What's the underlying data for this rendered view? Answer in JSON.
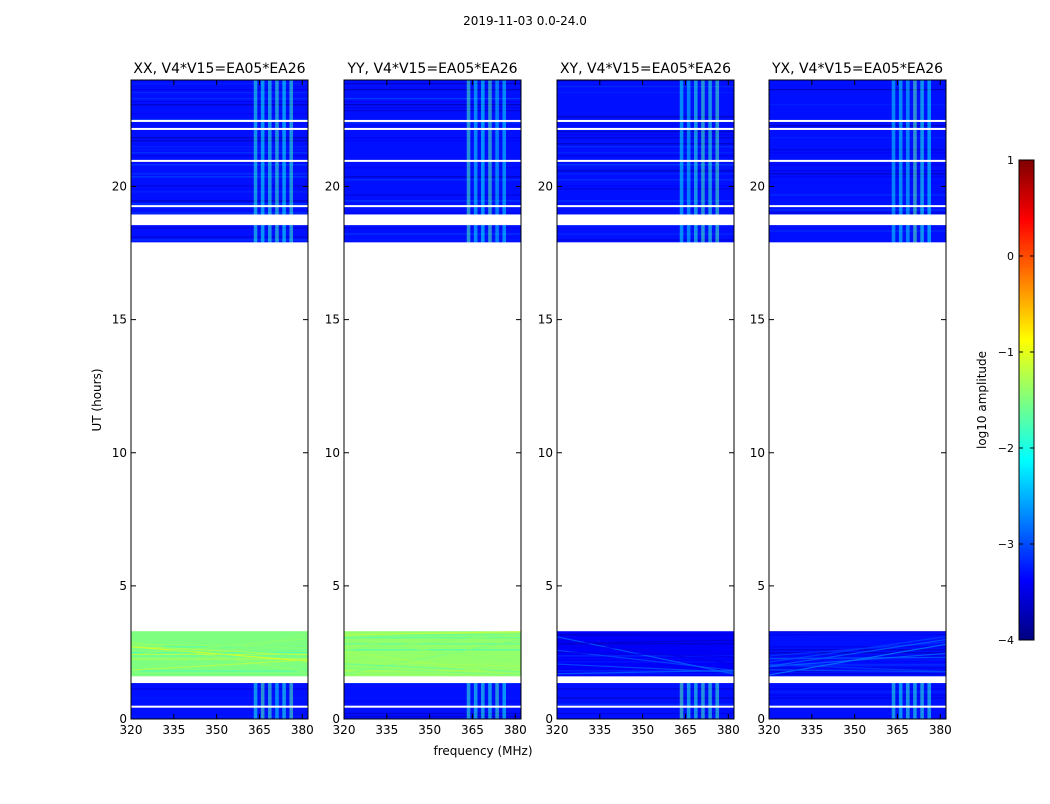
{
  "suptitle": "2019-11-03 0.0-24.0",
  "chart_data": {
    "type": "heatmap",
    "figure_title": "2019-11-03 0.0-24.0",
    "xlabel": "frequency (MHz)",
    "ylabel": "UT (hours)",
    "xlim": [
      320,
      382
    ],
    "ylim": [
      0,
      24
    ],
    "xticks": [
      "320",
      "335",
      "350",
      "365",
      "380"
    ],
    "yticks": [
      "0",
      "5",
      "10",
      "15",
      "20"
    ],
    "panels": [
      {
        "title": "XX, V4*V15=EA05*EA26",
        "polarization": "XX",
        "low_band_level": -1.5
      },
      {
        "title": "YY, V4*V15=EA05*EA26",
        "polarization": "YY",
        "low_band_level": -1.4
      },
      {
        "title": "XY, V4*V15=EA05*EA26",
        "polarization": "XY",
        "low_band_level": -3.4
      },
      {
        "title": "YX, V4*V15=EA05*EA26",
        "polarization": "YX",
        "low_band_level": -3.3
      }
    ],
    "observed_time_ranges_hours": [
      [
        0.0,
        1.5
      ],
      [
        1.6,
        3.3
      ],
      [
        17.9,
        24.0
      ]
    ],
    "flagged_time_ranges_hours": [
      [
        1.35,
        1.6
      ],
      [
        18.55,
        18.95
      ],
      [
        3.3,
        17.9
      ]
    ],
    "background_level": -3.3,
    "rfi_band_mhz": [
      363,
      378
    ],
    "rfi_level": -2.0,
    "colorbar": {
      "label": "log10 amplitude",
      "min": -4,
      "max": 1,
      "ticks": [
        "1",
        "0",
        "−1",
        "−2",
        "−3",
        "−4"
      ],
      "colormap": "jet",
      "colors": [
        "#00007f",
        "#0000ff",
        "#007fff",
        "#00ffff",
        "#7fff7f",
        "#ffff00",
        "#ff7f00",
        "#ff0000",
        "#7f0000"
      ]
    }
  }
}
